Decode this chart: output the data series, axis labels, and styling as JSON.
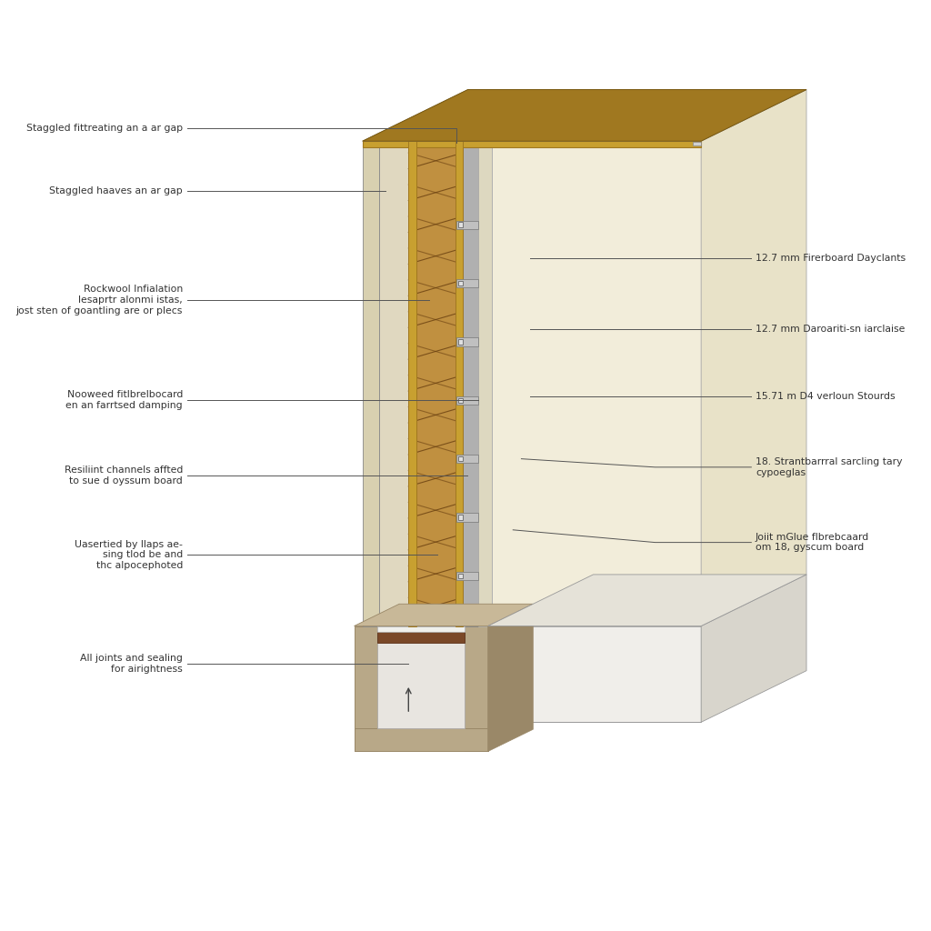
{
  "bg_color": "#ffffff",
  "cream_panel": "#f2edda",
  "cream_panel_side": "#e8e2c8",
  "cream_panel_top": "#e5dfc8",
  "wood_golden": "#c8a030",
  "wood_golden_dark": "#a07820",
  "insulation_tan": "#c09040",
  "insulation_dark": "#9a7030",
  "metal_gray": "#b0b0b0",
  "metal_dark": "#888888",
  "concrete_tan": "#b8a888",
  "concrete_dark": "#9a8868",
  "concrete_top": "#c8b898",
  "white_base": "#f0eeea",
  "white_base_side": "#d8d5cc",
  "white_base_top": "#e5e2d8",
  "wood_plate_brown": "#7a4828",
  "inner_cream": "#e8e3d0",
  "label_color": "#333333",
  "line_color": "#555555",
  "labels_left": [
    "Staggled fittreating an a ar gap",
    "Staggled haaves an ar gap",
    "Rockwool Infialation\nlesaprtr alonmi istas,\njost sten of goantling are or plecs",
    "Nooweed fitlbrelbocard\nen an farrtsed damping",
    "Resiliint channels affted\nto sue d oyssum board",
    "Uasertied by llaps ae-\nsing tlod be and\nthc alpocephoted",
    "All joints and sealing\nfor airightness"
  ],
  "labels_right": [
    "12.7 mm Firerboard Dayclants",
    "12.7 mm Daroariti-sn iarclaise",
    "15.71 m D4 verloun Stourds",
    "18. Strantbarrral sarcling tary\ncypoeglas",
    "Joiit mGlue flbrebcaard\nom 18, gyscum board"
  ]
}
